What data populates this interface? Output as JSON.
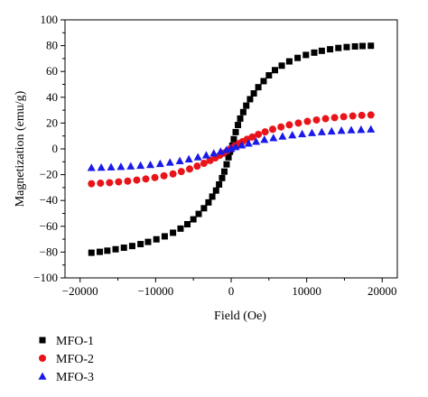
{
  "chart_data": {
    "type": "scatter",
    "xlabel": "Field (Oe)",
    "ylabel": "Magnetization (emu/g)",
    "xlim": [
      -22000,
      22000
    ],
    "ylim": [
      -100,
      100
    ],
    "xticks": [
      -20000,
      -10000,
      0,
      10000,
      20000
    ],
    "yticks": [
      -100,
      -80,
      -60,
      -40,
      -20,
      0,
      20,
      40,
      60,
      80,
      100
    ],
    "xtick_labels": [
      "−20000",
      "−10000",
      "0",
      "10000",
      "20000"
    ],
    "ytick_labels": [
      "−100",
      "−80",
      "−60",
      "−40",
      "−20",
      "0",
      "20",
      "40",
      "60",
      "80",
      "100"
    ],
    "grid": false,
    "legend_position": "below",
    "series": [
      {
        "name": "MFO-1",
        "marker": "square",
        "color": "#000000",
        "x": [
          -18500,
          -17400,
          -16400,
          -15300,
          -14200,
          -13100,
          -12000,
          -11000,
          -9900,
          -8800,
          -7700,
          -6700,
          -5800,
          -5000,
          -4300,
          -3600,
          -3000,
          -2500,
          -2000,
          -1600,
          -1200,
          -900,
          -600,
          -350,
          -150,
          0,
          150,
          350,
          600,
          900,
          1200,
          1600,
          2000,
          2500,
          3000,
          3600,
          4300,
          5000,
          5800,
          6700,
          7700,
          8800,
          9900,
          11000,
          12000,
          13100,
          14200,
          15300,
          16400,
          17400,
          18500
        ],
        "y": [
          -80.5,
          -79.8,
          -78.9,
          -77.8,
          -76.6,
          -75.3,
          -73.8,
          -72.1,
          -70.1,
          -67.8,
          -65.0,
          -61.8,
          -58.4,
          -54.6,
          -50.4,
          -46.0,
          -41.5,
          -37.0,
          -32.3,
          -27.6,
          -22.6,
          -17.6,
          -12.0,
          -6.5,
          -2.2,
          0,
          2.5,
          7.5,
          13.0,
          18.5,
          23.5,
          28.5,
          33.5,
          38.5,
          43.0,
          47.8,
          52.5,
          57.0,
          61.0,
          64.5,
          67.8,
          70.5,
          72.8,
          74.6,
          76.0,
          77.2,
          78.2,
          78.9,
          79.4,
          79.7,
          79.9
        ]
      },
      {
        "name": "MFO-2",
        "marker": "circle",
        "color": "#e8141a",
        "x": [
          -18500,
          -17300,
          -16100,
          -14900,
          -13700,
          -12500,
          -11300,
          -10100,
          -8900,
          -7700,
          -6600,
          -5500,
          -4500,
          -3600,
          -2800,
          -2100,
          -1500,
          -1000,
          -500,
          0,
          500,
          1000,
          1500,
          2100,
          2800,
          3600,
          4500,
          5500,
          6600,
          7700,
          8900,
          10100,
          11300,
          12500,
          13700,
          14900,
          16100,
          17300,
          18500
        ],
        "y": [
          -27.0,
          -26.6,
          -26.2,
          -25.6,
          -25.0,
          -24.2,
          -23.3,
          -22.2,
          -20.9,
          -19.4,
          -17.6,
          -15.6,
          -13.4,
          -11.2,
          -9.0,
          -7.0,
          -5.0,
          -3.3,
          -1.5,
          0.5,
          2.3,
          4.0,
          5.6,
          7.4,
          9.2,
          11.2,
          13.2,
          15.2,
          17.0,
          18.6,
          20.0,
          21.3,
          22.4,
          23.4,
          24.2,
          24.9,
          25.5,
          26.0,
          26.3
        ]
      },
      {
        "name": "MFO-3",
        "marker": "triangle",
        "color": "#1a1ae8",
        "x": [
          -18500,
          -17200,
          -15900,
          -14600,
          -13300,
          -12000,
          -10700,
          -9400,
          -8100,
          -6800,
          -5600,
          -4400,
          -3300,
          -2300,
          -1400,
          -600,
          0,
          600,
          1400,
          2300,
          3300,
          4400,
          5600,
          6800,
          8100,
          9400,
          10700,
          12000,
          13300,
          14600,
          15900,
          17200,
          18500
        ],
        "y": [
          -14.5,
          -14.3,
          -14.0,
          -13.7,
          -13.3,
          -12.8,
          -12.2,
          -11.4,
          -10.4,
          -9.2,
          -7.8,
          -6.3,
          -4.8,
          -3.3,
          -1.9,
          -0.6,
          0.5,
          1.7,
          3.0,
          4.4,
          5.8,
          7.3,
          8.6,
          9.8,
          10.8,
          11.7,
          12.5,
          13.2,
          13.8,
          14.3,
          14.7,
          15.0,
          15.3
        ]
      }
    ]
  }
}
